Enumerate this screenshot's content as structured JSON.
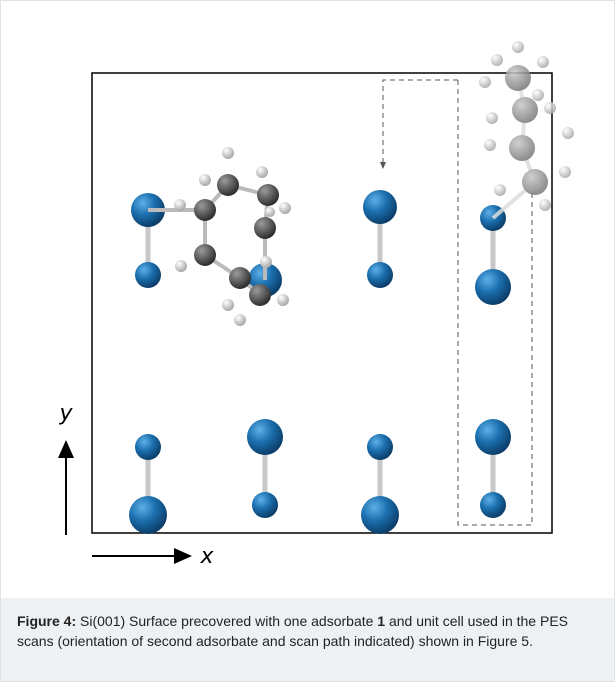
{
  "figure": {
    "axes": {
      "y": "y",
      "x": "x"
    },
    "caption": {
      "label": "Figure 4:",
      "text_before": " Si(001) Surface precovered with one adsorbate ",
      "bold_ref": "1",
      "text_after": " and unit cell used in the PES scans (orientation of second adsorbate and scan path indicated) shown in Figure 5."
    }
  }
}
